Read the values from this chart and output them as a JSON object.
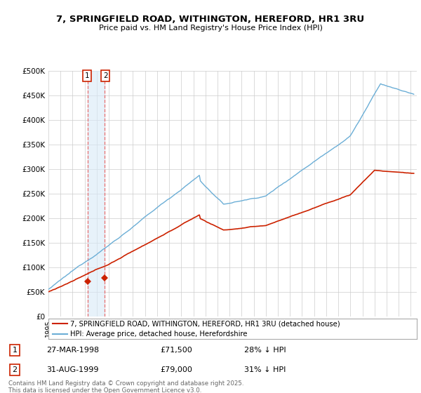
{
  "title_line1": "7, SPRINGFIELD ROAD, WITHINGTON, HEREFORD, HR1 3RU",
  "title_line2": "Price paid vs. HM Land Registry's House Price Index (HPI)",
  "legend_line1": "7, SPRINGFIELD ROAD, WITHINGTON, HEREFORD, HR1 3RU (detached house)",
  "legend_line2": "HPI: Average price, detached house, Herefordshire",
  "footer": "Contains HM Land Registry data © Crown copyright and database right 2025.\nThis data is licensed under the Open Government Licence v3.0.",
  "transaction1_date": "27-MAR-1998",
  "transaction1_price": "£71,500",
  "transaction1_hpi": "28% ↓ HPI",
  "transaction1_year": 1998.23,
  "transaction1_value": 71500,
  "transaction2_date": "31-AUG-1999",
  "transaction2_price": "£79,000",
  "transaction2_hpi": "31% ↓ HPI",
  "transaction2_year": 1999.66,
  "transaction2_value": 79000,
  "ylim_min": 0,
  "ylim_max": 500000,
  "hpi_color": "#6baed6",
  "price_color": "#cc2200",
  "background_color": "#ffffff",
  "grid_color": "#cccccc",
  "annotation_box_color": "#cc2200",
  "annotation_line_color": "#e87070",
  "annotation_fill_color": "#d8eaf8"
}
